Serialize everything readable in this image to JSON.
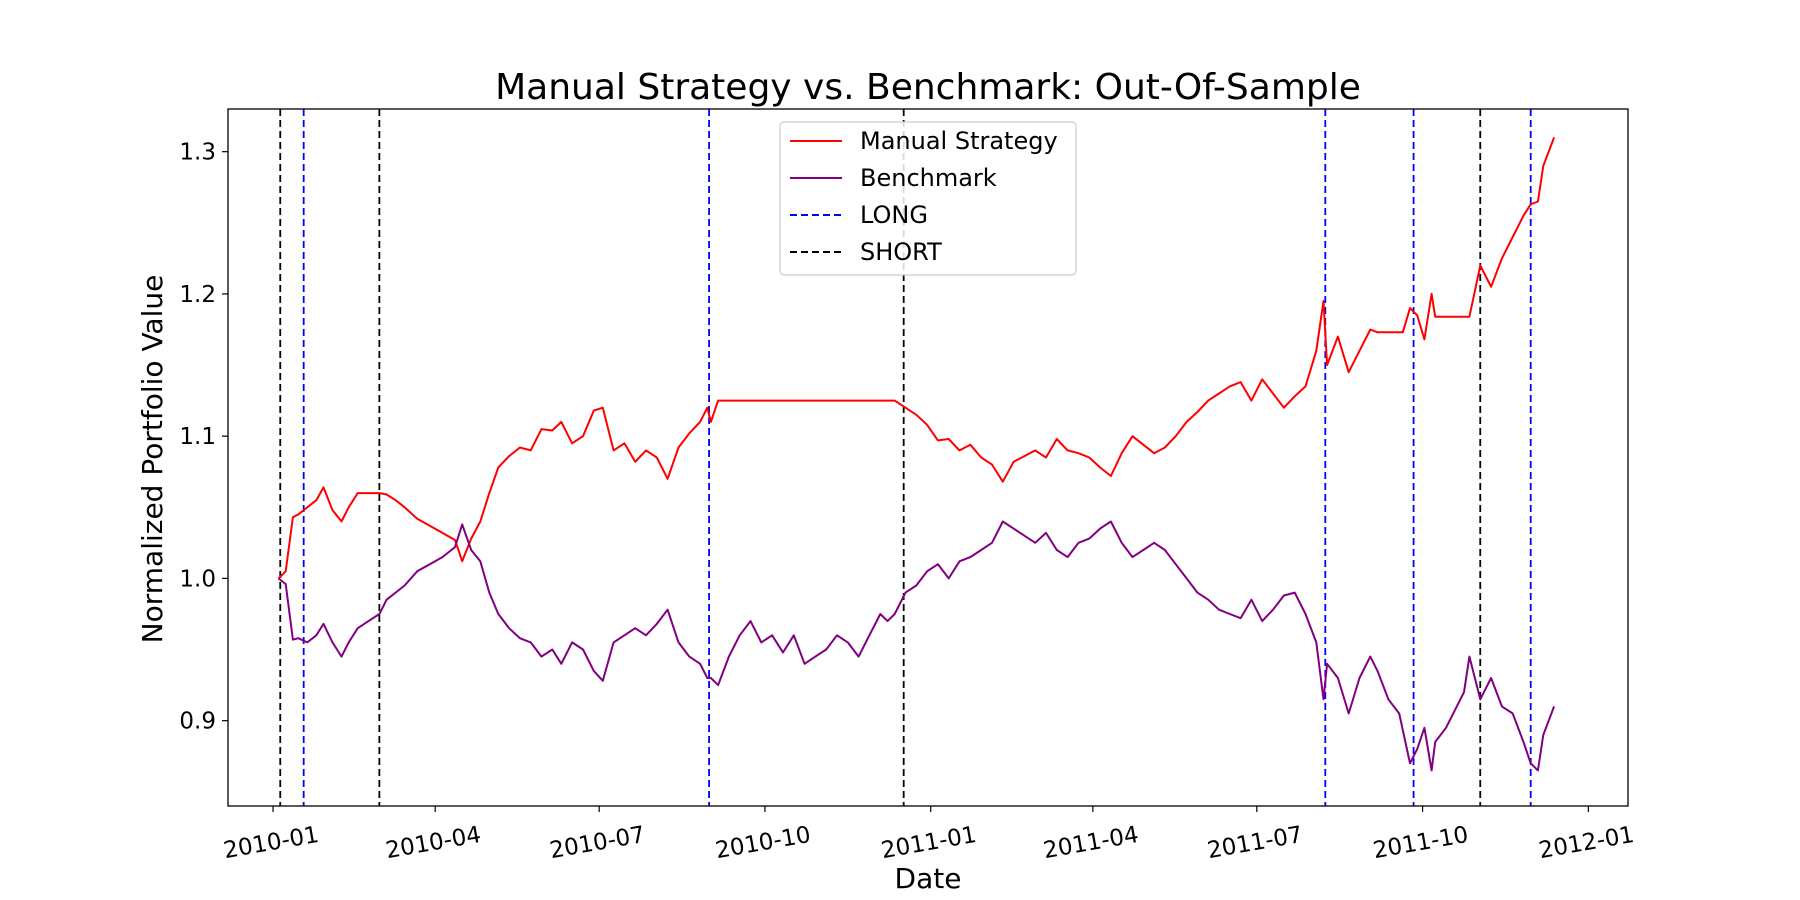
{
  "chart_data": {
    "type": "line",
    "title": "Manual Strategy vs. Benchmark: Out-Of-Sample",
    "xlabel": "Date",
    "ylabel": "Normalized Portfolio Value",
    "xlim": [
      "2009-12-07",
      "2012-01-23"
    ],
    "ylim": [
      0.84,
      1.33
    ],
    "grid": false,
    "legend_position": "upper-center",
    "x_ticks": [
      {
        "date": "2010-01-01",
        "label": "2010-01"
      },
      {
        "date": "2010-04-01",
        "label": "2010-04"
      },
      {
        "date": "2010-07-01",
        "label": "2010-07"
      },
      {
        "date": "2010-10-01",
        "label": "2010-10"
      },
      {
        "date": "2011-01-01",
        "label": "2011-01"
      },
      {
        "date": "2011-04-01",
        "label": "2011-04"
      },
      {
        "date": "2011-07-01",
        "label": "2011-07"
      },
      {
        "date": "2011-10-01",
        "label": "2011-10"
      },
      {
        "date": "2012-01-01",
        "label": "2012-01"
      }
    ],
    "y_ticks": [
      {
        "value": 0.9,
        "label": "0.9"
      },
      {
        "value": 1.0,
        "label": "1.0"
      },
      {
        "value": 1.1,
        "label": "1.1"
      },
      {
        "value": 1.2,
        "label": "1.2"
      },
      {
        "value": 1.3,
        "label": "1.3"
      }
    ],
    "series": [
      {
        "name": "Manual Strategy",
        "color": "#ff0000",
        "points": [
          [
            "2010-01-04",
            1.0
          ],
          [
            "2010-01-08",
            1.005
          ],
          [
            "2010-01-12",
            1.043
          ],
          [
            "2010-01-15",
            1.045
          ],
          [
            "2010-01-20",
            1.05
          ],
          [
            "2010-01-25",
            1.055
          ],
          [
            "2010-01-29",
            1.064
          ],
          [
            "2010-02-03",
            1.048
          ],
          [
            "2010-02-08",
            1.04
          ],
          [
            "2010-02-12",
            1.05
          ],
          [
            "2010-02-17",
            1.06
          ],
          [
            "2010-02-23",
            1.06
          ],
          [
            "2010-03-01",
            1.06
          ],
          [
            "2010-03-05",
            1.059
          ],
          [
            "2010-03-10",
            1.055
          ],
          [
            "2010-03-15",
            1.05
          ],
          [
            "2010-03-22",
            1.042
          ],
          [
            "2010-03-29",
            1.037
          ],
          [
            "2010-04-05",
            1.032
          ],
          [
            "2010-04-12",
            1.027
          ],
          [
            "2010-04-16",
            1.012
          ],
          [
            "2010-04-21",
            1.028
          ],
          [
            "2010-04-26",
            1.04
          ],
          [
            "2010-05-01",
            1.06
          ],
          [
            "2010-05-06",
            1.078
          ],
          [
            "2010-05-12",
            1.086
          ],
          [
            "2010-05-18",
            1.092
          ],
          [
            "2010-05-24",
            1.09
          ],
          [
            "2010-05-30",
            1.105
          ],
          [
            "2010-06-05",
            1.104
          ],
          [
            "2010-06-10",
            1.11
          ],
          [
            "2010-06-16",
            1.095
          ],
          [
            "2010-06-22",
            1.1
          ],
          [
            "2010-06-28",
            1.118
          ],
          [
            "2010-07-03",
            1.12
          ],
          [
            "2010-07-09",
            1.09
          ],
          [
            "2010-07-15",
            1.095
          ],
          [
            "2010-07-21",
            1.082
          ],
          [
            "2010-07-27",
            1.09
          ],
          [
            "2010-08-02",
            1.085
          ],
          [
            "2010-08-08",
            1.07
          ],
          [
            "2010-08-14",
            1.092
          ],
          [
            "2010-08-20",
            1.102
          ],
          [
            "2010-08-26",
            1.11
          ],
          [
            "2010-08-30",
            1.12
          ],
          [
            "2010-09-01",
            1.11
          ],
          [
            "2010-09-05",
            1.125
          ],
          [
            "2010-10-15",
            1.125
          ],
          [
            "2010-12-12",
            1.125
          ],
          [
            "2010-12-18",
            1.12
          ],
          [
            "2010-12-24",
            1.115
          ],
          [
            "2010-12-30",
            1.108
          ],
          [
            "2011-01-05",
            1.097
          ],
          [
            "2011-01-11",
            1.098
          ],
          [
            "2011-01-17",
            1.09
          ],
          [
            "2011-01-23",
            1.094
          ],
          [
            "2011-01-29",
            1.085
          ],
          [
            "2011-02-04",
            1.08
          ],
          [
            "2011-02-10",
            1.068
          ],
          [
            "2011-02-16",
            1.082
          ],
          [
            "2011-02-22",
            1.086
          ],
          [
            "2011-02-28",
            1.09
          ],
          [
            "2011-03-06",
            1.085
          ],
          [
            "2011-03-12",
            1.098
          ],
          [
            "2011-03-18",
            1.09
          ],
          [
            "2011-03-24",
            1.088
          ],
          [
            "2011-03-30",
            1.085
          ],
          [
            "2011-04-05",
            1.078
          ],
          [
            "2011-04-11",
            1.072
          ],
          [
            "2011-04-17",
            1.088
          ],
          [
            "2011-04-23",
            1.1
          ],
          [
            "2011-04-29",
            1.094
          ],
          [
            "2011-05-05",
            1.088
          ],
          [
            "2011-05-11",
            1.092
          ],
          [
            "2011-05-17",
            1.1
          ],
          [
            "2011-05-23",
            1.11
          ],
          [
            "2011-05-29",
            1.117
          ],
          [
            "2011-06-04",
            1.125
          ],
          [
            "2011-06-10",
            1.13
          ],
          [
            "2011-06-16",
            1.135
          ],
          [
            "2011-06-22",
            1.138
          ],
          [
            "2011-06-28",
            1.125
          ],
          [
            "2011-07-04",
            1.14
          ],
          [
            "2011-07-10",
            1.13
          ],
          [
            "2011-07-16",
            1.12
          ],
          [
            "2011-07-22",
            1.128
          ],
          [
            "2011-07-28",
            1.135
          ],
          [
            "2011-08-03",
            1.16
          ],
          [
            "2011-08-07",
            1.195
          ],
          [
            "2011-08-09",
            1.15
          ],
          [
            "2011-08-15",
            1.17
          ],
          [
            "2011-08-21",
            1.145
          ],
          [
            "2011-08-27",
            1.16
          ],
          [
            "2011-09-02",
            1.175
          ],
          [
            "2011-09-06",
            1.173
          ],
          [
            "2011-09-20",
            1.173
          ],
          [
            "2011-09-24",
            1.19
          ],
          [
            "2011-09-28",
            1.185
          ],
          [
            "2011-10-02",
            1.168
          ],
          [
            "2011-10-06",
            1.2
          ],
          [
            "2011-10-08",
            1.184
          ],
          [
            "2011-10-20",
            1.184
          ],
          [
            "2011-10-27",
            1.184
          ],
          [
            "2011-11-02",
            1.22
          ],
          [
            "2011-11-08",
            1.205
          ],
          [
            "2011-11-14",
            1.225
          ],
          [
            "2011-11-20",
            1.24
          ],
          [
            "2011-11-26",
            1.255
          ],
          [
            "2011-11-30",
            1.263
          ],
          [
            "2011-12-04",
            1.265
          ],
          [
            "2011-12-07",
            1.29
          ],
          [
            "2011-12-10",
            1.3
          ],
          [
            "2011-12-13",
            1.31
          ]
        ]
      },
      {
        "name": "Benchmark",
        "color": "#800080",
        "points": [
          [
            "2010-01-04",
            1.0
          ],
          [
            "2010-01-08",
            0.996
          ],
          [
            "2010-01-12",
            0.957
          ],
          [
            "2010-01-15",
            0.958
          ],
          [
            "2010-01-20",
            0.955
          ],
          [
            "2010-01-25",
            0.96
          ],
          [
            "2010-01-29",
            0.968
          ],
          [
            "2010-02-03",
            0.955
          ],
          [
            "2010-02-08",
            0.945
          ],
          [
            "2010-02-12",
            0.955
          ],
          [
            "2010-02-17",
            0.965
          ],
          [
            "2010-02-23",
            0.97
          ],
          [
            "2010-03-01",
            0.975
          ],
          [
            "2010-03-05",
            0.985
          ],
          [
            "2010-03-10",
            0.99
          ],
          [
            "2010-03-15",
            0.995
          ],
          [
            "2010-03-22",
            1.005
          ],
          [
            "2010-03-29",
            1.01
          ],
          [
            "2010-04-05",
            1.015
          ],
          [
            "2010-04-12",
            1.022
          ],
          [
            "2010-04-16",
            1.038
          ],
          [
            "2010-04-21",
            1.02
          ],
          [
            "2010-04-26",
            1.012
          ],
          [
            "2010-05-01",
            0.99
          ],
          [
            "2010-05-06",
            0.975
          ],
          [
            "2010-05-12",
            0.965
          ],
          [
            "2010-05-18",
            0.958
          ],
          [
            "2010-05-24",
            0.955
          ],
          [
            "2010-05-30",
            0.945
          ],
          [
            "2010-06-05",
            0.95
          ],
          [
            "2010-06-10",
            0.94
          ],
          [
            "2010-06-16",
            0.955
          ],
          [
            "2010-06-22",
            0.95
          ],
          [
            "2010-06-28",
            0.935
          ],
          [
            "2010-07-03",
            0.928
          ],
          [
            "2010-07-09",
            0.955
          ],
          [
            "2010-07-15",
            0.96
          ],
          [
            "2010-07-21",
            0.965
          ],
          [
            "2010-07-27",
            0.96
          ],
          [
            "2010-08-02",
            0.968
          ],
          [
            "2010-08-08",
            0.978
          ],
          [
            "2010-08-14",
            0.955
          ],
          [
            "2010-08-20",
            0.945
          ],
          [
            "2010-08-26",
            0.94
          ],
          [
            "2010-08-30",
            0.93
          ],
          [
            "2010-09-01",
            0.93
          ],
          [
            "2010-09-05",
            0.925
          ],
          [
            "2010-09-11",
            0.945
          ],
          [
            "2010-09-17",
            0.96
          ],
          [
            "2010-09-23",
            0.97
          ],
          [
            "2010-09-29",
            0.955
          ],
          [
            "2010-10-05",
            0.96
          ],
          [
            "2010-10-11",
            0.948
          ],
          [
            "2010-10-17",
            0.96
          ],
          [
            "2010-10-23",
            0.94
          ],
          [
            "2010-10-29",
            0.945
          ],
          [
            "2010-11-04",
            0.95
          ],
          [
            "2010-11-10",
            0.96
          ],
          [
            "2010-11-16",
            0.955
          ],
          [
            "2010-11-22",
            0.945
          ],
          [
            "2010-11-28",
            0.96
          ],
          [
            "2010-12-04",
            0.975
          ],
          [
            "2010-12-08",
            0.97
          ],
          [
            "2010-12-12",
            0.975
          ],
          [
            "2010-12-18",
            0.99
          ],
          [
            "2010-12-24",
            0.995
          ],
          [
            "2010-12-30",
            1.005
          ],
          [
            "2011-01-05",
            1.01
          ],
          [
            "2011-01-11",
            1.0
          ],
          [
            "2011-01-17",
            1.012
          ],
          [
            "2011-01-23",
            1.015
          ],
          [
            "2011-01-29",
            1.02
          ],
          [
            "2011-02-04",
            1.025
          ],
          [
            "2011-02-10",
            1.04
          ],
          [
            "2011-02-16",
            1.035
          ],
          [
            "2011-02-22",
            1.03
          ],
          [
            "2011-02-28",
            1.025
          ],
          [
            "2011-03-06",
            1.032
          ],
          [
            "2011-03-12",
            1.02
          ],
          [
            "2011-03-18",
            1.015
          ],
          [
            "2011-03-24",
            1.025
          ],
          [
            "2011-03-30",
            1.028
          ],
          [
            "2011-04-05",
            1.035
          ],
          [
            "2011-04-11",
            1.04
          ],
          [
            "2011-04-17",
            1.025
          ],
          [
            "2011-04-23",
            1.015
          ],
          [
            "2011-04-29",
            1.02
          ],
          [
            "2011-05-05",
            1.025
          ],
          [
            "2011-05-11",
            1.02
          ],
          [
            "2011-05-17",
            1.01
          ],
          [
            "2011-05-23",
            1.0
          ],
          [
            "2011-05-29",
            0.99
          ],
          [
            "2011-06-04",
            0.985
          ],
          [
            "2011-06-10",
            0.978
          ],
          [
            "2011-06-16",
            0.975
          ],
          [
            "2011-06-22",
            0.972
          ],
          [
            "2011-06-28",
            0.985
          ],
          [
            "2011-07-04",
            0.97
          ],
          [
            "2011-07-10",
            0.978
          ],
          [
            "2011-07-16",
            0.988
          ],
          [
            "2011-07-22",
            0.99
          ],
          [
            "2011-07-28",
            0.975
          ],
          [
            "2011-08-03",
            0.955
          ],
          [
            "2011-08-07",
            0.915
          ],
          [
            "2011-08-09",
            0.94
          ],
          [
            "2011-08-15",
            0.93
          ],
          [
            "2011-08-21",
            0.905
          ],
          [
            "2011-08-27",
            0.93
          ],
          [
            "2011-09-02",
            0.945
          ],
          [
            "2011-09-06",
            0.935
          ],
          [
            "2011-09-12",
            0.915
          ],
          [
            "2011-09-18",
            0.905
          ],
          [
            "2011-09-24",
            0.87
          ],
          [
            "2011-09-28",
            0.88
          ],
          [
            "2011-10-02",
            0.895
          ],
          [
            "2011-10-06",
            0.865
          ],
          [
            "2011-10-08",
            0.885
          ],
          [
            "2011-10-14",
            0.895
          ],
          [
            "2011-10-20",
            0.91
          ],
          [
            "2011-10-24",
            0.92
          ],
          [
            "2011-10-27",
            0.945
          ],
          [
            "2011-11-02",
            0.915
          ],
          [
            "2011-11-08",
            0.93
          ],
          [
            "2011-11-14",
            0.91
          ],
          [
            "2011-11-20",
            0.905
          ],
          [
            "2011-11-26",
            0.885
          ],
          [
            "2011-11-30",
            0.87
          ],
          [
            "2011-12-04",
            0.865
          ],
          [
            "2011-12-07",
            0.89
          ],
          [
            "2011-12-10",
            0.9
          ],
          [
            "2011-12-13",
            0.91
          ]
        ]
      }
    ],
    "signals": {
      "LONG": {
        "color": "#0000ff",
        "dates": [
          "2010-01-18",
          "2010-08-31",
          "2011-08-08",
          "2011-09-26",
          "2011-11-30"
        ]
      },
      "SHORT": {
        "color": "#000000",
        "dates": [
          "2010-01-05",
          "2010-03-01",
          "2010-12-17",
          "2011-11-02"
        ]
      }
    },
    "legend": [
      {
        "label": "Manual Strategy",
        "color": "#ff0000",
        "style": "solid"
      },
      {
        "label": "Benchmark",
        "color": "#800080",
        "style": "solid"
      },
      {
        "label": "LONG",
        "color": "#0000ff",
        "style": "dashed"
      },
      {
        "label": "SHORT",
        "color": "#000000",
        "style": "dashed"
      }
    ]
  }
}
